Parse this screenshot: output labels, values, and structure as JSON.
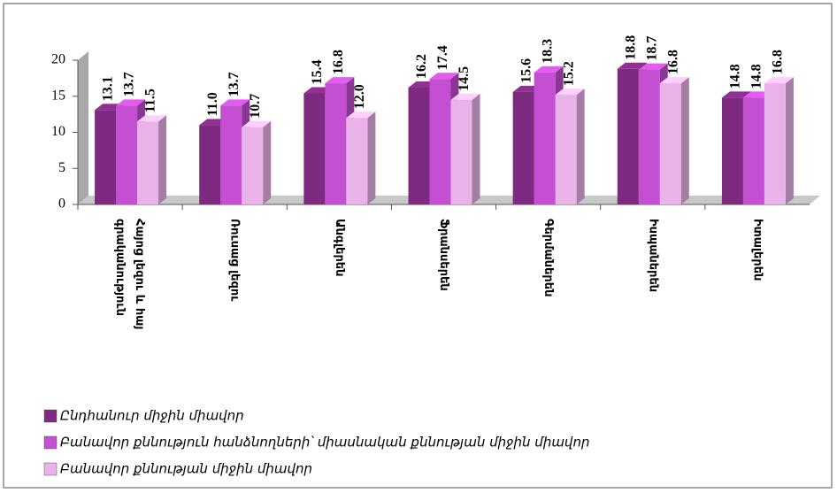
{
  "chart_data": {
    "type": "bar3d",
    "categories": [
      "Հայոց լեզու և հայ գրականություն",
      "Ռուսաց լեզու",
      "Անգլերեն",
      "Ֆրանսերեն",
      "Գերմաներեն",
      "Իսպաներեն",
      "Իտալերեն"
    ],
    "series": [
      {
        "name": "Ընդհանուր միջին միավոր",
        "color": "#7d2a80",
        "values": [
          13.1,
          11.0,
          15.4,
          16.2,
          15.6,
          18.8,
          14.8
        ],
        "value_labels": [
          "13.1",
          "11.0",
          "15.4",
          "16.2",
          "15.6",
          "18.8",
          "14.8"
        ]
      },
      {
        "name": "Բանավոր քննություն հանձնողների՝ միասնական քննության միջին միավոր",
        "color": "#c54fd2",
        "values": [
          13.7,
          13.7,
          16.8,
          17.4,
          18.3,
          18.7,
          14.8
        ],
        "value_labels": [
          "13.7",
          "13.7",
          "16.8",
          "17.4",
          "18.3",
          "18.7",
          "14.8"
        ]
      },
      {
        "name": "Բանավոր քննության միջին միավոր",
        "color": "#e9b3ea",
        "values": [
          11.5,
          10.7,
          12.0,
          14.5,
          15.2,
          16.8,
          16.8
        ],
        "value_labels": [
          "11.5",
          "10.7",
          "12.0",
          "14.5",
          "15.2",
          "16.8",
          "16.8"
        ]
      }
    ],
    "ylim": [
      0,
      20
    ],
    "yticks": [
      0,
      5,
      10,
      15,
      20
    ],
    "legend": "bottom-left"
  }
}
